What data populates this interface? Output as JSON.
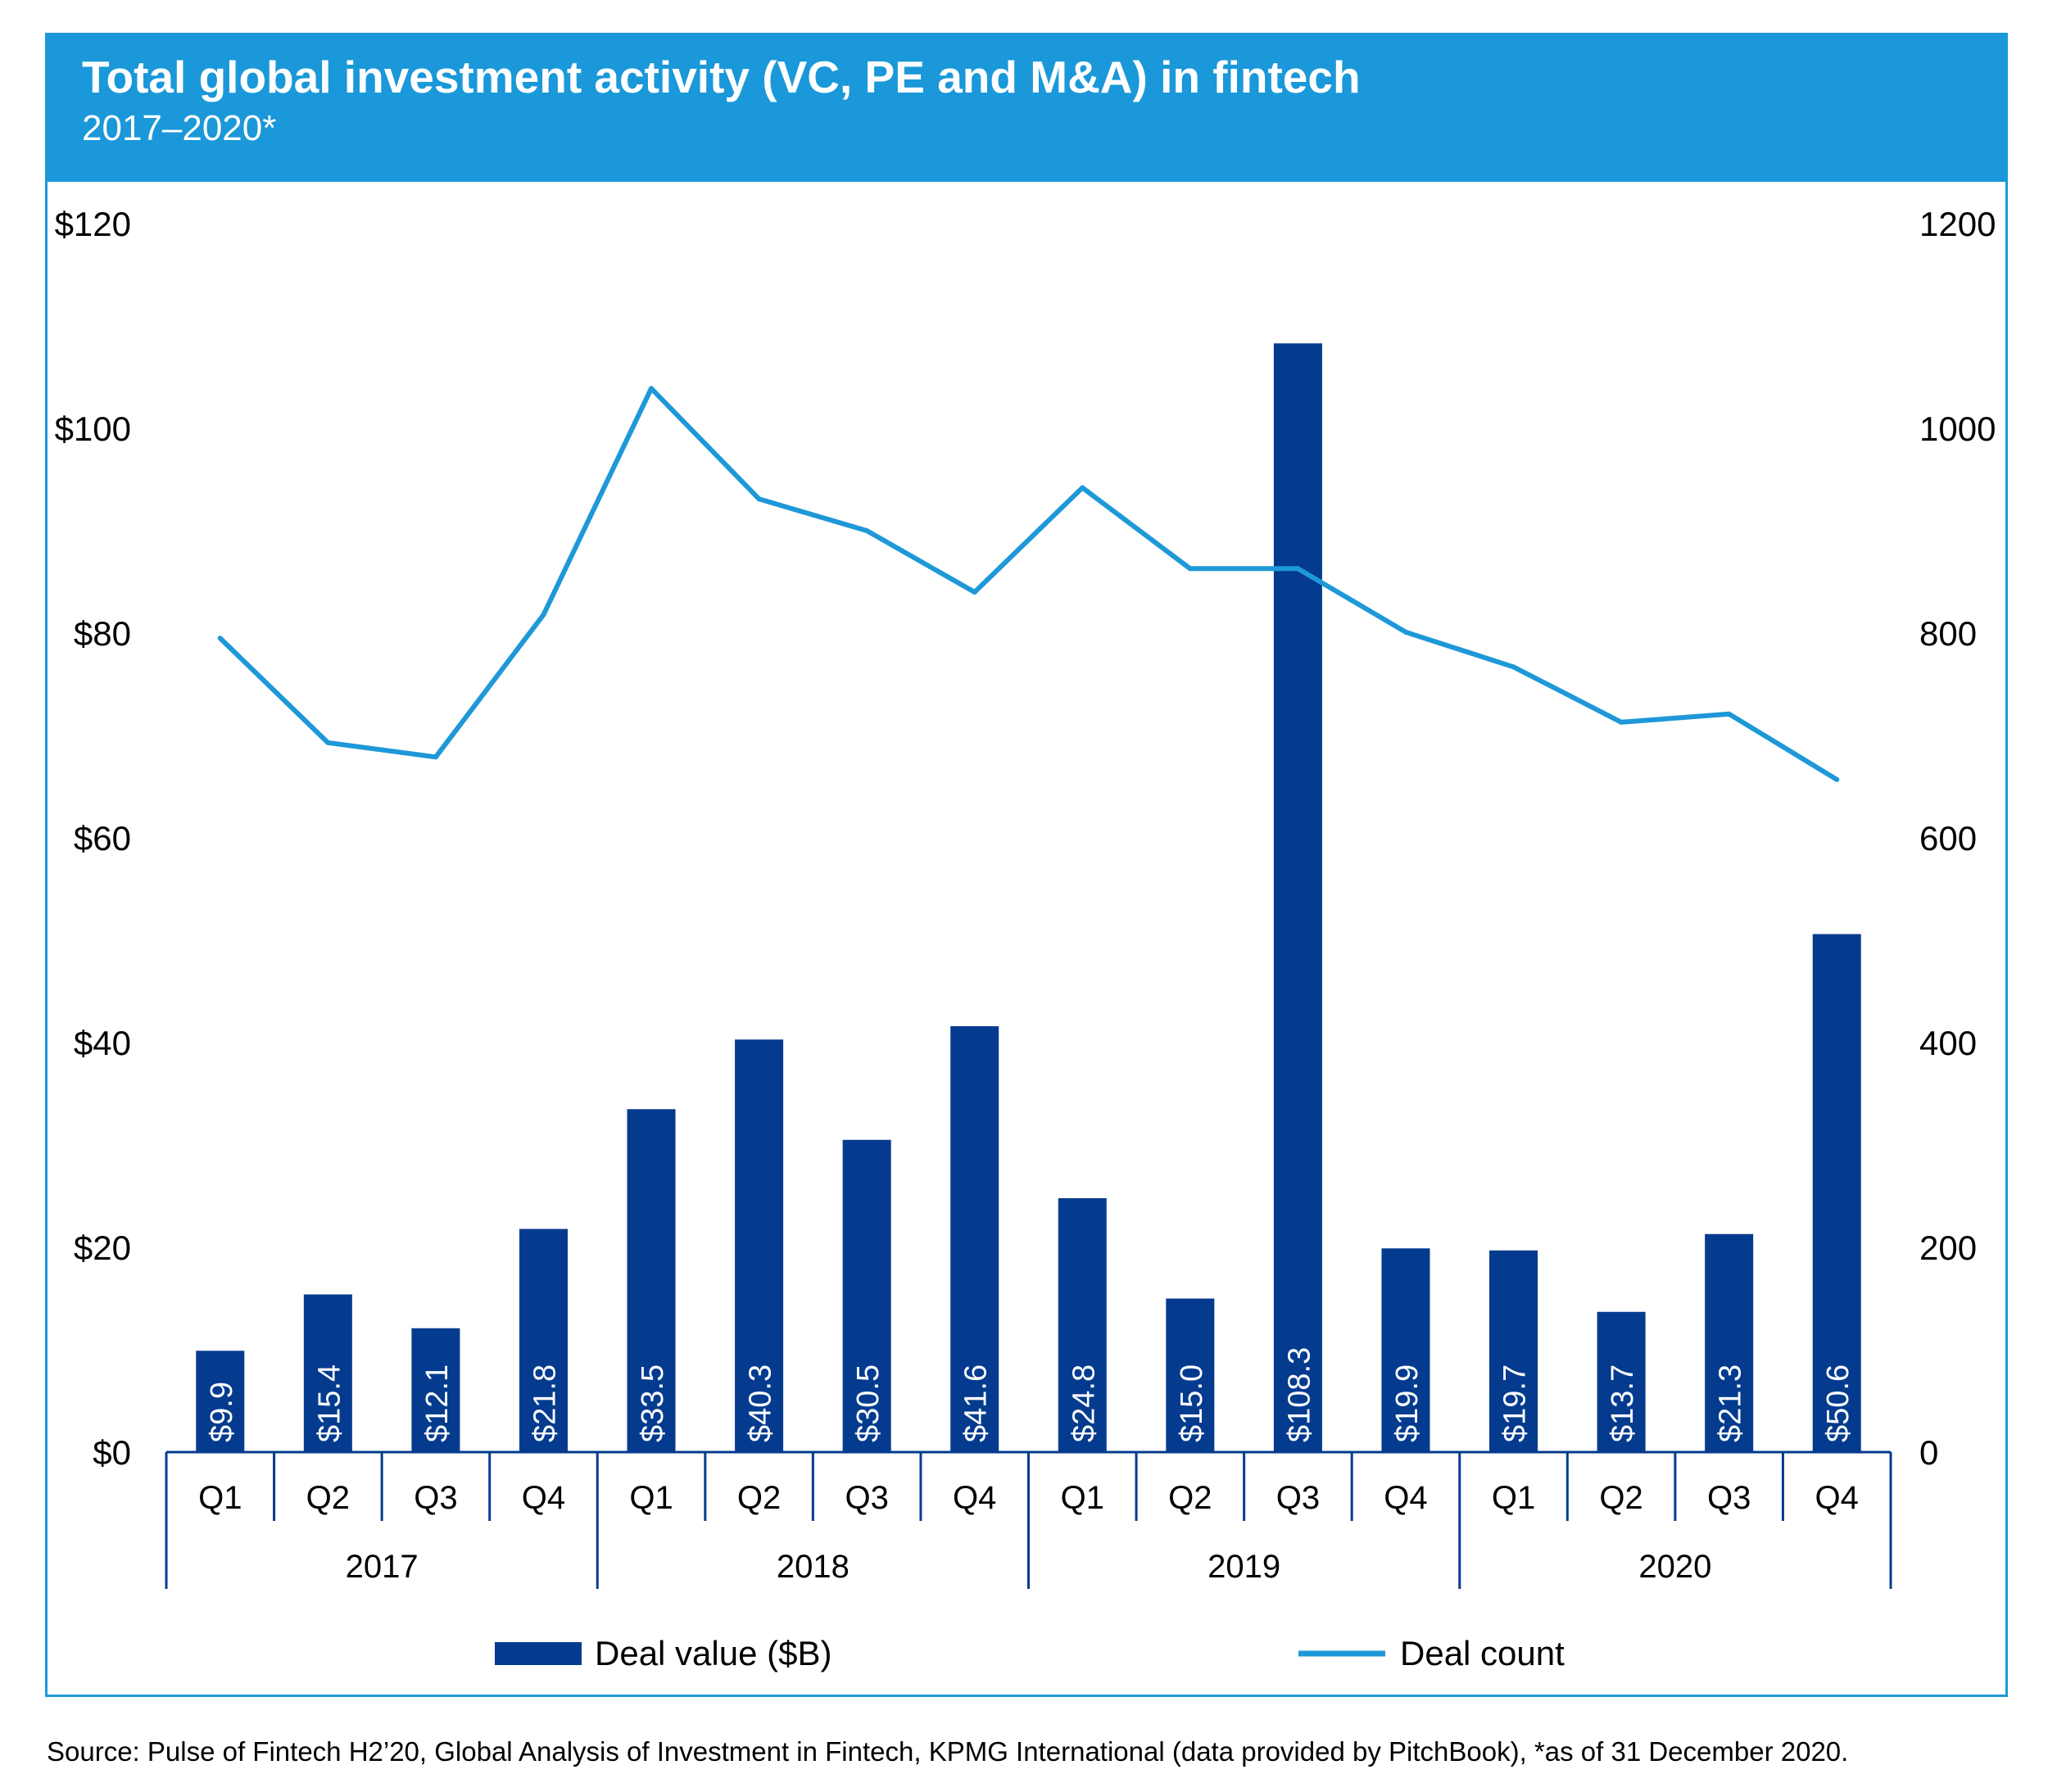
{
  "header": {
    "title": "Total global investment activity (VC, PE and M&A) in fintech",
    "subtitle": "2017–2020*"
  },
  "footer": {
    "source": "Source: Pulse of Fintech H2’20, Global Analysis of Investment in Fintech, KPMG International (data provided by PitchBook), *as of 31 December 2020."
  },
  "colors": {
    "bar": "#043b8f",
    "line": "#1e98d8",
    "header": "#1a98d9"
  },
  "chart_data": {
    "type": "bar",
    "categories": [
      "Q1",
      "Q2",
      "Q3",
      "Q4",
      "Q1",
      "Q2",
      "Q3",
      "Q4",
      "Q1",
      "Q2",
      "Q3",
      "Q4",
      "Q1",
      "Q2",
      "Q3",
      "Q4"
    ],
    "groups": [
      {
        "label": "2017",
        "count": 4
      },
      {
        "label": "2018",
        "count": 4
      },
      {
        "label": "2019",
        "count": 4
      },
      {
        "label": "2020",
        "count": 4
      }
    ],
    "series": [
      {
        "name": "Deal value ($B)",
        "type": "bar",
        "axis": "left",
        "values": [
          9.9,
          15.4,
          12.1,
          21.8,
          33.5,
          40.3,
          30.5,
          41.6,
          24.8,
          15.0,
          108.3,
          19.9,
          19.7,
          13.7,
          21.3,
          50.6
        ],
        "labels": [
          "$9.9",
          "$15.4",
          "$12.1",
          "$21.8",
          "$33.5",
          "$40.3",
          "$30.5",
          "$41.6",
          "$24.8",
          "$15.0",
          "$108.3",
          "$19.9",
          "$19.7",
          "$13.7",
          "$21.3",
          "$50.6"
        ]
      },
      {
        "name": "Deal count",
        "type": "line",
        "axis": "right",
        "values": [
          795,
          693,
          679,
          818,
          1039,
          931,
          900,
          840,
          942,
          863,
          863,
          801,
          767,
          713,
          721,
          657
        ]
      }
    ],
    "yaxis_left": {
      "min": 0,
      "max": 120,
      "ticks": [
        0,
        20,
        40,
        60,
        80,
        100,
        120
      ],
      "tick_labels": [
        "$0",
        "$20",
        "$40",
        "$60",
        "$80",
        "$100",
        "$120"
      ]
    },
    "yaxis_right": {
      "min": 0,
      "max": 1200,
      "ticks": [
        0,
        200,
        400,
        600,
        800,
        1000,
        1200
      ],
      "tick_labels": [
        "0",
        "200",
        "400",
        "600",
        "800",
        "1000",
        "1200"
      ]
    },
    "grid": false,
    "legend": "bottom"
  }
}
